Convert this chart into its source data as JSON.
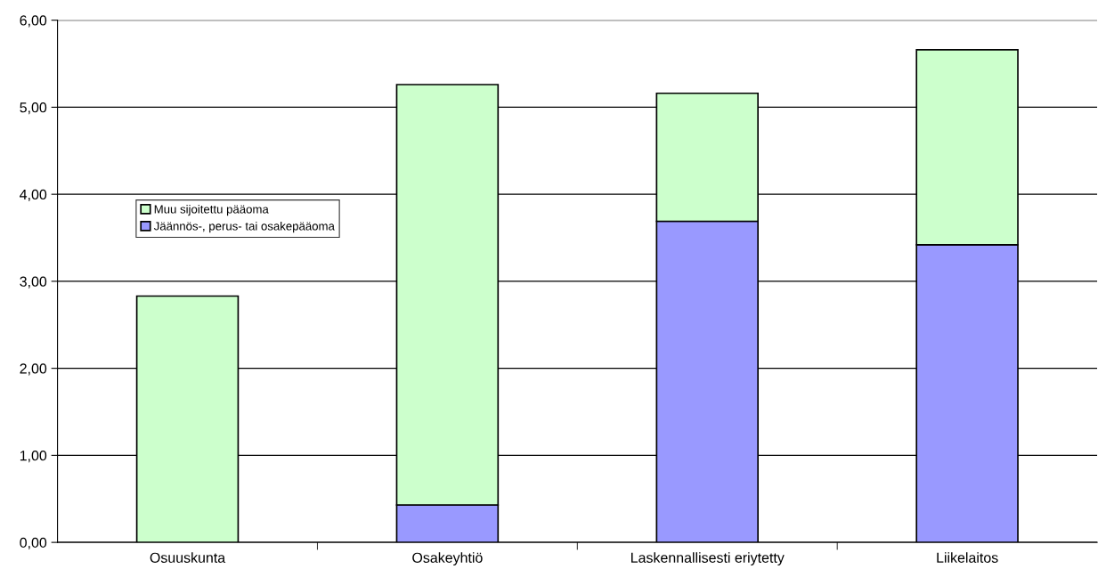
{
  "chart_data": {
    "type": "bar",
    "stacked": true,
    "categories": [
      "Osuuskunta",
      "Osakeyhtiö",
      "Laskennallisesti eriytetty",
      "Liikelaitos"
    ],
    "series": [
      {
        "name": "Jäännös-, perus- tai osakepääoma",
        "color": "#9999ff",
        "values": [
          0,
          0.43,
          3.69,
          3.42
        ]
      },
      {
        "name": "Muu sijoitettu pääoma",
        "color": "#ccffcc",
        "values": [
          2.83,
          4.83,
          1.47,
          2.24
        ]
      }
    ],
    "ylim": [
      0,
      6
    ],
    "yticks": [
      {
        "value": 0,
        "label": "0,00"
      },
      {
        "value": 1,
        "label": "1,00"
      },
      {
        "value": 2,
        "label": "2,00"
      },
      {
        "value": 3,
        "label": "3,00"
      },
      {
        "value": 4,
        "label": "4,00"
      },
      {
        "value": 5,
        "label": "5,00"
      },
      {
        "value": 6,
        "label": "6,00"
      }
    ],
    "grid": "y",
    "legend": "left"
  }
}
